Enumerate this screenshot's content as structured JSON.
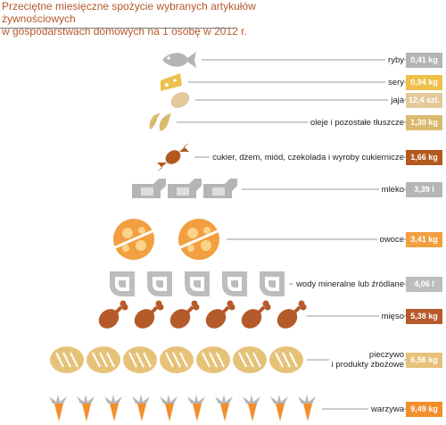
{
  "title_line1": "Przeciętne miesięczne spożycie wybranych artykułów żywnościowych",
  "title_line2": "w gospodarstwach domowych na 1 osobę w 2012 r.",
  "chart_data": {
    "type": "table",
    "title": "Przeciętne miesięczne spożycie wybranych artykułów żywnościowych w gospodarstwach domowych na 1 osobę w 2012 r.",
    "rows": [
      {
        "label": "ryby",
        "value_text": "0,41 kg",
        "value": 0.41,
        "unit": "kg",
        "icon": "fish-icon",
        "icon_count": 1,
        "color": "#b5b5b5"
      },
      {
        "label": "sery",
        "value_text": "0,94 kg",
        "value": 0.94,
        "unit": "kg",
        "icon": "cheese-icon",
        "icon_count": 1,
        "color": "#edc04b"
      },
      {
        "label": "jaja",
        "value_text": "12,4 szt.",
        "value": 12.4,
        "unit": "szt.",
        "icon": "egg-icon",
        "icon_count": 1,
        "color": "#e2c99a"
      },
      {
        "label": "oleje i pozostałe tłuszcze",
        "value_text": "1,30 kg",
        "value": 1.3,
        "unit": "kg",
        "icon": "oil-drop-icon",
        "icon_count": 1,
        "color": "#d9ba6e"
      },
      {
        "label": "cukier, dżem, miód, czekolada i wyroby cukiernicze",
        "value_text": "1,66 kg",
        "value": 1.66,
        "unit": "kg",
        "icon": "candy-icon",
        "icon_count": 1,
        "color": "#b25a1e"
      },
      {
        "label": "mleko",
        "value_text": "3,39 l",
        "value": 3.39,
        "unit": "l",
        "icon": "milk-bottle-icon",
        "icon_count": 3,
        "color": "#b5b5b5"
      },
      {
        "label": "owoce",
        "value_text": "3,41 kg",
        "value": 3.41,
        "unit": "kg",
        "icon": "orange-icon",
        "icon_count": 2,
        "color": "#f29f3f"
      },
      {
        "label": "wody mineralne lub źródlane",
        "value_text": "4,06 l",
        "value": 4.06,
        "unit": "l",
        "icon": "water-drop-icon",
        "icon_count": 5,
        "color": "#bdbdbd"
      },
      {
        "label": "mięso",
        "value_text": "5,38 kg",
        "value": 5.38,
        "unit": "kg",
        "icon": "drumstick-icon",
        "icon_count": 6,
        "color": "#b55a2a"
      },
      {
        "label": "pieczywo\ni produkty zbożowe",
        "value_text": "6,56 kg",
        "value": 6.56,
        "unit": "kg",
        "icon": "bread-icon",
        "icon_count": 7,
        "color": "#e6c279"
      },
      {
        "label": "warzywa",
        "value_text": "9,49 kg",
        "value": 9.49,
        "unit": "kg",
        "icon": "carrot-icon",
        "icon_count": 10,
        "color": "#f28e2b"
      }
    ]
  }
}
